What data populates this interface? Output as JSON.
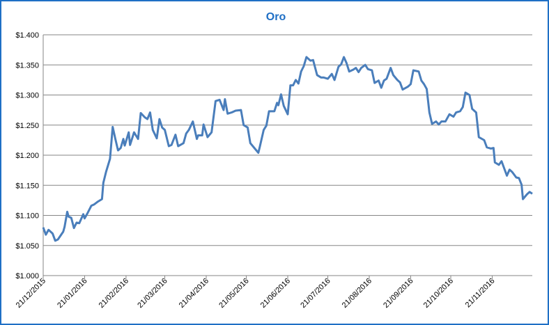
{
  "chart_data": {
    "type": "line",
    "title": "Oro",
    "color": "#4a7ebb",
    "grid": true,
    "xlim": [
      "21/12/2015",
      "21/12/2016"
    ],
    "xticks": [
      "21/12/2015",
      "21/01/2016",
      "21/02/2016",
      "21/03/2016",
      "21/04/2016",
      "21/05/2016",
      "21/06/2016",
      "21/07/2016",
      "21/08/2016",
      "21/09/2016",
      "21/10/2016",
      "21/11/2016"
    ],
    "ylim": [
      1000,
      1400
    ],
    "yticks": [
      {
        "value": 1000,
        "label": "$1.000"
      },
      {
        "value": 1050,
        "label": "$1.050"
      },
      {
        "value": 1100,
        "label": "$1.100"
      },
      {
        "value": 1150,
        "label": "$1.150"
      },
      {
        "value": 1200,
        "label": "$1.200"
      },
      {
        "value": 1250,
        "label": "$1.250"
      },
      {
        "value": 1300,
        "label": "$1.300"
      },
      {
        "value": 1350,
        "label": "$1.350"
      },
      {
        "value": 1400,
        "label": "$1.400"
      }
    ],
    "x": [
      "21/12/2015",
      "23/12/2015",
      "25/12/2015",
      "28/12/2015",
      "30/12/2015",
      "01/01/2016",
      "05/01/2016",
      "06/01/2016",
      "08/01/2016",
      "09/01/2016",
      "11/01/2016",
      "13/01/2016",
      "15/01/2016",
      "17/01/2016",
      "20/01/2016",
      "21/01/2016",
      "23/01/2016",
      "26/01/2016",
      "28/01/2016",
      "31/01/2016",
      "03/02/2016",
      "04/02/2016",
      "06/02/2016",
      "09/02/2016",
      "11/02/2016",
      "13/02/2016",
      "15/02/2016",
      "17/02/2016",
      "19/02/2016",
      "20/02/2016",
      "23/02/2016",
      "24/02/2016",
      "27/02/2016",
      "01/03/2016",
      "03/03/2016",
      "06/03/2016",
      "08/03/2016",
      "10/03/2016",
      "12/03/2016",
      "15/03/2016",
      "17/03/2016",
      "19/03/2016",
      "21/03/2016",
      "24/03/2016",
      "26/03/2016",
      "29/03/2016",
      "31/03/2016",
      "04/04/2016",
      "06/04/2016",
      "08/04/2016",
      "11/04/2016",
      "14/04/2016",
      "15/04/2016",
      "18/04/2016",
      "19/04/2016",
      "22/04/2016",
      "25/04/2016",
      "28/04/2016",
      "01/05/2016",
      "04/05/2016",
      "05/05/2016",
      "07/05/2016",
      "10/05/2016",
      "13/05/2016",
      "17/05/2016",
      "19/05/2016",
      "22/05/2016",
      "24/05/2016",
      "27/05/2016",
      "30/05/2016",
      "31/05/2016",
      "03/06/2016",
      "05/06/2016",
      "07/06/2016",
      "11/06/2016",
      "13/06/2016",
      "14/06/2016",
      "16/06/2016",
      "18/06/2016",
      "21/06/2016",
      "23/06/2016",
      "25/06/2016",
      "27/06/2016",
      "29/06/2016",
      "01/07/2016",
      "03/07/2016",
      "05/07/2016",
      "08/07/2016",
      "10/07/2016",
      "13/07/2016",
      "16/07/2016",
      "18/07/2016",
      "21/07/2016",
      "24/07/2016",
      "26/07/2016",
      "29/07/2016",
      "31/07/2016",
      "02/08/2016",
      "04/08/2016",
      "06/08/2016",
      "09/08/2016",
      "11/08/2016",
      "13/08/2016",
      "15/08/2016",
      "18/08/2016",
      "20/08/2016",
      "23/08/2016",
      "25/08/2016",
      "28/08/2016",
      "30/08/2016",
      "01/09/2016",
      "03/09/2016",
      "06/09/2016",
      "08/09/2016",
      "11/09/2016",
      "13/09/2016",
      "15/09/2016",
      "19/09/2016",
      "21/09/2016",
      "23/09/2016",
      "27/09/2016",
      "29/09/2016",
      "01/10/2016",
      "03/10/2016",
      "05/10/2016",
      "07/10/2016",
      "10/10/2016",
      "12/10/2016",
      "14/10/2016",
      "17/10/2016",
      "20/10/2016",
      "23/10/2016",
      "25/10/2016",
      "28/10/2016",
      "30/10/2016",
      "01/11/2016",
      "04/11/2016",
      "06/11/2016",
      "09/11/2016",
      "11/11/2016",
      "15/11/2016",
      "17/11/2016",
      "20/11/2016",
      "22/11/2016",
      "23/11/2016",
      "26/11/2016",
      "28/11/2016",
      "30/11/2016",
      "02/12/2016",
      "04/12/2016",
      "06/12/2016",
      "09/12/2016",
      "11/12/2016",
      "13/12/2016",
      "14/12/2016",
      "17/12/2016",
      "19/12/2016",
      "21/12/2016"
    ],
    "values": [
      1080,
      1068,
      1076,
      1070,
      1058,
      1060,
      1073,
      1081,
      1106,
      1098,
      1096,
      1079,
      1088,
      1087,
      1102,
      1095,
      1103,
      1116,
      1118,
      1123,
      1127,
      1154,
      1172,
      1194,
      1247,
      1227,
      1208,
      1212,
      1227,
      1216,
      1238,
      1217,
      1238,
      1227,
      1270,
      1263,
      1260,
      1271,
      1242,
      1228,
      1260,
      1246,
      1242,
      1215,
      1217,
      1234,
      1215,
      1220,
      1236,
      1242,
      1256,
      1227,
      1233,
      1233,
      1251,
      1230,
      1238,
      1290,
      1292,
      1275,
      1293,
      1269,
      1271,
      1274,
      1275,
      1250,
      1246,
      1220,
      1212,
      1204,
      1213,
      1242,
      1249,
      1273,
      1273,
      1287,
      1283,
      1301,
      1282,
      1268,
      1316,
      1316,
      1325,
      1319,
      1339,
      1348,
      1363,
      1357,
      1358,
      1333,
      1329,
      1329,
      1327,
      1335,
      1325,
      1347,
      1351,
      1363,
      1353,
      1339,
      1342,
      1345,
      1338,
      1345,
      1350,
      1343,
      1341,
      1320,
      1324,
      1312,
      1324,
      1327,
      1345,
      1333,
      1325,
      1321,
      1309,
      1314,
      1318,
      1341,
      1339,
      1324,
      1318,
      1310,
      1271,
      1252,
      1256,
      1251,
      1256,
      1256,
      1268,
      1264,
      1271,
      1273,
      1280,
      1304,
      1300,
      1277,
      1271,
      1230,
      1225,
      1213,
      1211,
      1212,
      1188,
      1184,
      1190,
      1178,
      1166,
      1176,
      1172,
      1163,
      1162,
      1151,
      1127,
      1135,
      1139,
      1136
    ]
  }
}
